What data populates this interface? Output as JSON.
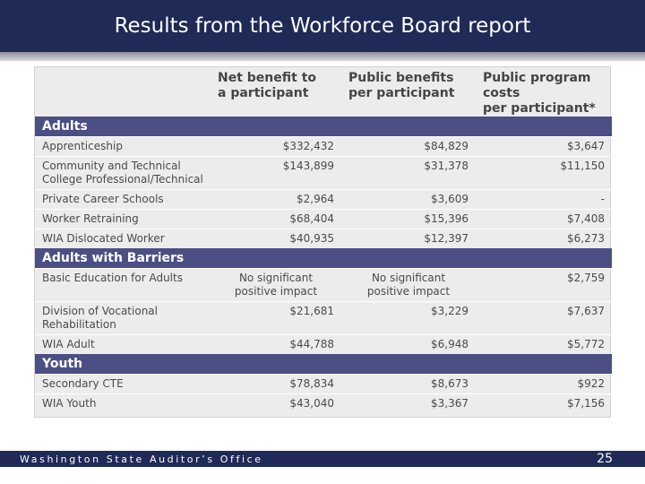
{
  "title": "Results from the Workforce Board report",
  "table": {
    "headers": [
      "",
      "Net benefit to\na participant",
      "Public benefits\nper participant",
      "Public program costs\nper participant*"
    ],
    "sections": [
      {
        "name": "Adults",
        "rows": [
          [
            "Apprenticeship",
            "$332,432",
            "$84,829",
            "$3,647"
          ],
          [
            "Community and Technical\nCollege Professional/Technical",
            "$143,899",
            "$31,378",
            "$11,150"
          ],
          [
            "Private Career Schools",
            "$2,964",
            "$3,609",
            "-"
          ],
          [
            "Worker Retraining",
            "$68,404",
            "$15,396",
            "$7,408"
          ],
          [
            "WIA Dislocated Worker",
            "$40,935",
            "$12,397",
            "$6,273"
          ]
        ]
      },
      {
        "name": "Adults with Barriers",
        "rows": [
          [
            "Basic Education for Adults",
            "No significant\npositive impact",
            "No significant\npositive impact",
            "$2,759"
          ],
          [
            "Division of Vocational\nRehabilitation",
            "$21,681",
            "$3,229",
            "$7,637"
          ],
          [
            "WIA Adult",
            "$44,788",
            "$6,948",
            "$5,772"
          ]
        ]
      },
      {
        "name": "Youth",
        "rows": [
          [
            "Secondary CTE",
            "$78,834",
            "$8,673",
            "$922"
          ],
          [
            "WIA Youth",
            "$43,040",
            "$3,367",
            "$7,156"
          ]
        ]
      }
    ]
  },
  "footer": {
    "org": "Washington State Auditor’s Office",
    "page": "25"
  }
}
